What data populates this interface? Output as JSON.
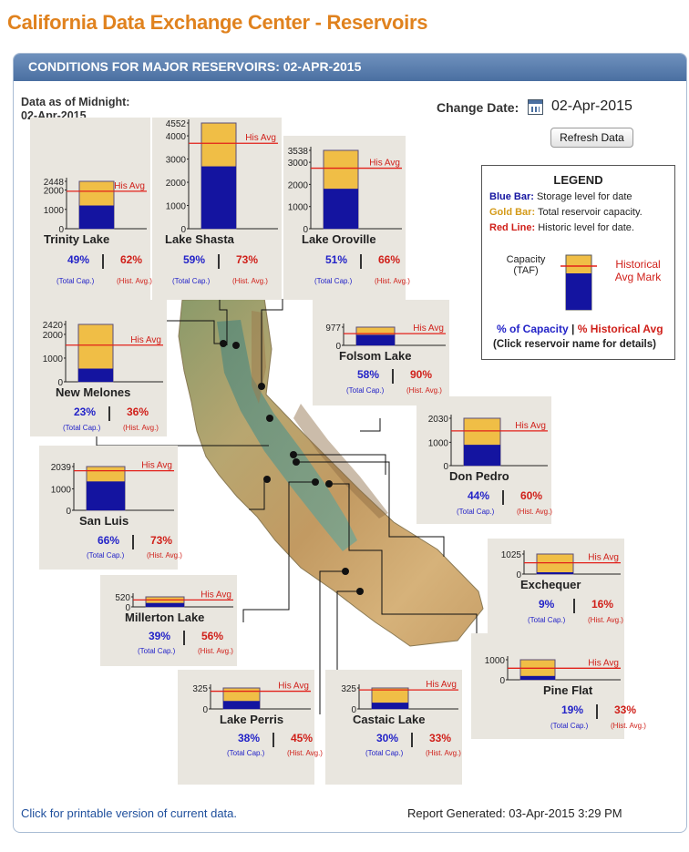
{
  "page_title": "California Data Exchange Center - Reservoirs",
  "header": "CONDITIONS FOR MAJOR RESERVOIRS: 02-APR-2015",
  "data_as_of_label": "Data as of Midnight:",
  "data_as_of_date": "02-Apr-2015",
  "change_date_label": "Change Date:",
  "date_value": "02-Apr-2015",
  "refresh_label": "Refresh Data",
  "his_avg_label": "His Avg",
  "total_cap_label": "(Total Cap.)",
  "hist_avg_label": "(Hist. Avg.)",
  "legend": {
    "title": "LEGEND",
    "blue_key": "Blue Bar:",
    "blue_text": "Storage level for date",
    "gold_key": "Gold Bar:",
    "gold_text": "Total reservoir capacity.",
    "red_key": "Red Line:",
    "red_text": "Historic level for date.",
    "capacity_label": "Capacity",
    "capacity_unit": "(TAF)",
    "historical_label": "Historical",
    "avg_mark_label": "Avg Mark",
    "pct_capacity": "% of Capacity",
    "pct_hist": "% Historical Avg",
    "click_note": "(Click reservoir name for details)",
    "colors": {
      "blue": "#1414a0",
      "gold": "#f0be46",
      "red": "#e2201a"
    }
  },
  "reservoirs": [
    {
      "name": "Trinity Lake",
      "capacity_label": "2448",
      "ticks": [
        "2000",
        "1000",
        "0"
      ],
      "pct_capacity": "49%",
      "pct_hist": "62%"
    },
    {
      "name": "Lake Shasta",
      "capacity_label": "4552",
      "ticks": [
        "4000",
        "3000",
        "2000",
        "1000",
        "0"
      ],
      "pct_capacity": "59%",
      "pct_hist": "73%"
    },
    {
      "name": "Lake Oroville",
      "capacity_label": "3538",
      "ticks": [
        "3000",
        "2000",
        "1000",
        "0"
      ],
      "pct_capacity": "51%",
      "pct_hist": "66%"
    },
    {
      "name": "New Melones",
      "capacity_label": "2420",
      "ticks": [
        "2000",
        "1000",
        "0"
      ],
      "pct_capacity": "23%",
      "pct_hist": "36%"
    },
    {
      "name": "Folsom Lake",
      "capacity_label": "977",
      "ticks": [
        "0"
      ],
      "pct_capacity": "58%",
      "pct_hist": "90%"
    },
    {
      "name": "Don Pedro",
      "capacity_label": "2030",
      "ticks": [
        "1000",
        "0"
      ],
      "pct_capacity": "44%",
      "pct_hist": "60%"
    },
    {
      "name": "San Luis",
      "capacity_label": "2039",
      "ticks": [
        "1000",
        "0"
      ],
      "pct_capacity": "66%",
      "pct_hist": "73%"
    },
    {
      "name": "Exchequer",
      "capacity_label": "1025",
      "ticks": [
        "0"
      ],
      "pct_capacity": "9%",
      "pct_hist": "16%"
    },
    {
      "name": "Millerton Lake",
      "capacity_label": "520",
      "ticks": [
        "0"
      ],
      "pct_capacity": "39%",
      "pct_hist": "56%"
    },
    {
      "name": "Pine Flat",
      "capacity_label": "1000",
      "ticks": [
        "0"
      ],
      "pct_capacity": "19%",
      "pct_hist": "33%"
    },
    {
      "name": "Lake Perris",
      "capacity_label": "325",
      "ticks": [
        "0"
      ],
      "pct_capacity": "38%",
      "pct_hist": "45%"
    },
    {
      "name": "Castaic Lake",
      "capacity_label": "325",
      "ticks": [
        "0"
      ],
      "pct_capacity": "30%",
      "pct_hist": "33%"
    }
  ],
  "printable_link": "Click for printable version of current data.",
  "report_generated": "Report Generated: 03-Apr-2015 3:29 PM"
}
